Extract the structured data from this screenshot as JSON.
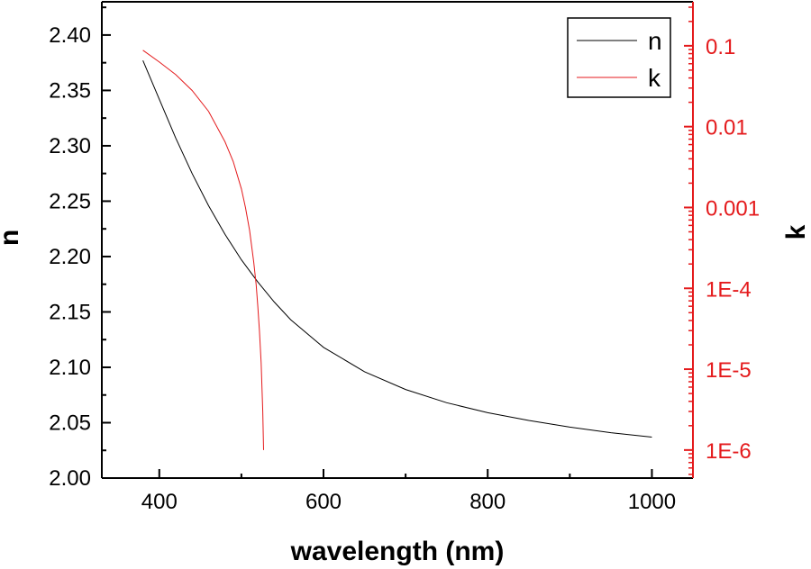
{
  "chart_data": {
    "type": "line",
    "title": "",
    "xlabel": "wavelength (nm)",
    "ylabel_left": "n",
    "ylabel_right": "k",
    "xlim": [
      330,
      1050
    ],
    "xticks": [
      400,
      600,
      800,
      1000
    ],
    "xtick_labels": [
      "400",
      "600",
      "800",
      "1000"
    ],
    "ylim_left": [
      2.0,
      2.43
    ],
    "yticks_left": [
      2.0,
      2.05,
      2.1,
      2.15,
      2.2,
      2.25,
      2.3,
      2.35,
      2.4
    ],
    "ytick_labels_left": [
      "2.00",
      "2.05",
      "2.10",
      "2.15",
      "2.20",
      "2.25",
      "2.30",
      "2.35",
      "2.40"
    ],
    "ylim_right": [
      4.5e-07,
      0.35
    ],
    "yscale_right": "log",
    "yticks_right": [
      1e-06,
      1e-05,
      0.0001,
      0.001,
      0.01,
      0.1
    ],
    "ytick_labels_right": [
      "1E-6",
      "1E-5",
      "1E-4",
      "0.001",
      "0.01",
      "0.1"
    ],
    "grid": false,
    "legend": {
      "position": "top-right",
      "entries": [
        {
          "label": "n",
          "color": "#000000"
        },
        {
          "label": "k",
          "color": "#e41a1c"
        }
      ]
    },
    "colors": {
      "axis_left": "#000000",
      "axis_right": "#e41a1c"
    },
    "series": [
      {
        "name": "n",
        "axis": "left",
        "color": "#000000",
        "x": [
          380,
          400,
          420,
          440,
          460,
          480,
          500,
          520,
          540,
          560,
          600,
          650,
          700,
          750,
          800,
          850,
          900,
          950,
          1000
        ],
        "y": [
          2.377,
          2.342,
          2.307,
          2.275,
          2.246,
          2.22,
          2.197,
          2.177,
          2.159,
          2.143,
          2.118,
          2.096,
          2.08,
          2.068,
          2.059,
          2.052,
          2.046,
          2.041,
          2.037
        ]
      },
      {
        "name": "k",
        "axis": "right",
        "color": "#e41a1c",
        "x": [
          380,
          400,
          420,
          440,
          460,
          480,
          490,
          500,
          505,
          510,
          515,
          518,
          520,
          522,
          524,
          525,
          526,
          527
        ],
        "y": [
          0.088,
          0.063,
          0.044,
          0.028,
          0.0155,
          0.0065,
          0.0037,
          0.0017,
          0.001,
          0.00052,
          0.00021,
          0.00011,
          6e-05,
          3e-05,
          1.2e-05,
          6e-06,
          3e-06,
          1e-06
        ]
      }
    ]
  }
}
